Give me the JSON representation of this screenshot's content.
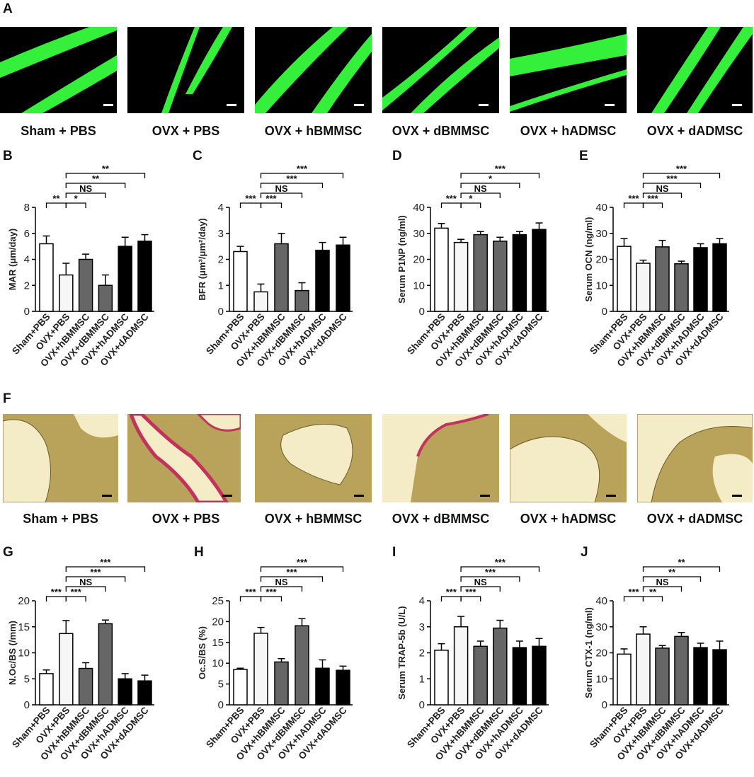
{
  "panel_letters": {
    "A": "A",
    "B": "B",
    "C": "C",
    "D": "D",
    "E": "E",
    "F": "F",
    "G": "G",
    "H": "H",
    "I": "I",
    "J": "J"
  },
  "group_captions": [
    "Sham + PBS",
    "OVX + PBS",
    "OVX + hBMMSC",
    "OVX + dBMMSC",
    "OVX + hADMSC",
    "OVX + dADMSC"
  ],
  "colors": {
    "fluorescent_green": "#35f03a",
    "stain_background": "#b9a35a",
    "stain_bone": "#f3ecc6",
    "stain_trap": "#c2325c",
    "bar_white": "#ffffff",
    "bar_light": "#f6f6f6",
    "bar_gray": "#666666",
    "bar_black": "#000000"
  },
  "chart_data": [
    {
      "type": "bar",
      "panel": "B",
      "categories": [
        "Sham+PBS",
        "OVX+PBS",
        "OVX+hBMMSC",
        "OVX+dBMMSC",
        "OVX+hADMSC",
        "OVX+dADMSC"
      ],
      "values": [
        5.2,
        2.8,
        4.0,
        2.0,
        5.0,
        5.4
      ],
      "errors": [
        0.6,
        0.9,
        0.4,
        0.8,
        0.7,
        0.5
      ],
      "ylabel": "MAR (μm/day)",
      "ylim": [
        0,
        8
      ],
      "yticks": [
        "0",
        "2",
        "4",
        "6",
        "8"
      ],
      "significance": [
        {
          "from": 0,
          "to": 1,
          "label": "**"
        },
        {
          "from": 1,
          "to": 2,
          "label": "*"
        },
        {
          "from": 1,
          "to": 3,
          "label": "NS"
        },
        {
          "from": 1,
          "to": 4,
          "label": "**"
        },
        {
          "from": 1,
          "to": 5,
          "label": "**"
        }
      ]
    },
    {
      "type": "bar",
      "panel": "C",
      "categories": [
        "Sham+PBS",
        "OVX+PBS",
        "OVX+hBMMSC",
        "OVX+dBMMSC",
        "OVX+hADMSC",
        "OVX+dADMSC"
      ],
      "values": [
        2.3,
        0.75,
        2.6,
        0.8,
        2.35,
        2.55
      ],
      "errors": [
        0.2,
        0.3,
        0.4,
        0.3,
        0.3,
        0.3
      ],
      "ylabel": "BFR (μm³/μm²/day)",
      "ylim": [
        0,
        4
      ],
      "yticks": [
        "0",
        "1",
        "2",
        "3",
        "4"
      ],
      "significance": [
        {
          "from": 0,
          "to": 1,
          "label": "***"
        },
        {
          "from": 1,
          "to": 2,
          "label": "***"
        },
        {
          "from": 1,
          "to": 3,
          "label": "NS"
        },
        {
          "from": 1,
          "to": 4,
          "label": "***"
        },
        {
          "from": 1,
          "to": 5,
          "label": "***"
        }
      ]
    },
    {
      "type": "bar",
      "panel": "D",
      "categories": [
        "Sham+PBS",
        "OVX+PBS",
        "OVX+hBMMSC",
        "OVX+dBMMSC",
        "OVX+hADMSC",
        "OVX+dADMSC"
      ],
      "values": [
        32,
        26.5,
        29.5,
        27,
        29.5,
        31.5
      ],
      "errors": [
        1.8,
        1.2,
        1.2,
        1.5,
        1.2,
        2.5
      ],
      "ylabel": "Serum P1NP (ng/ml)",
      "ylim": [
        0,
        40
      ],
      "yticks": [
        "0",
        "10",
        "20",
        "30",
        "40"
      ],
      "significance": [
        {
          "from": 0,
          "to": 1,
          "label": "***"
        },
        {
          "from": 1,
          "to": 2,
          "label": "*"
        },
        {
          "from": 1,
          "to": 3,
          "label": "NS"
        },
        {
          "from": 1,
          "to": 4,
          "label": "*"
        },
        {
          "from": 1,
          "to": 5,
          "label": "***"
        }
      ]
    },
    {
      "type": "bar",
      "panel": "E",
      "categories": [
        "Sham+PBS",
        "OVX+PBS",
        "OVX+hBMMSC",
        "OVX+dBMMSC",
        "OVX+hADMSC",
        "OVX+dADMSC"
      ],
      "values": [
        25,
        18.5,
        24.8,
        18.3,
        24.5,
        26
      ],
      "errors": [
        3.0,
        1.2,
        2.5,
        1.0,
        1.5,
        2.0
      ],
      "ylabel": "Serum OCN (ng/ml)",
      "ylim": [
        0,
        40
      ],
      "yticks": [
        "0",
        "10",
        "20",
        "30",
        "40"
      ],
      "significance": [
        {
          "from": 0,
          "to": 1,
          "label": "***"
        },
        {
          "from": 1,
          "to": 2,
          "label": "***"
        },
        {
          "from": 1,
          "to": 3,
          "label": "NS"
        },
        {
          "from": 1,
          "to": 4,
          "label": "***"
        },
        {
          "from": 1,
          "to": 5,
          "label": "***"
        }
      ]
    },
    {
      "type": "bar",
      "panel": "G",
      "categories": [
        "Sham+PBS",
        "OVX+PBS",
        "OVX+hBMMSC",
        "OVX+dBMMSC",
        "OVX+hADMSC",
        "OVX+dADMSC"
      ],
      "values": [
        6.0,
        13.7,
        7.0,
        15.6,
        5.0,
        4.6
      ],
      "errors": [
        0.7,
        2.5,
        1.1,
        0.7,
        1.0,
        1.1
      ],
      "ylabel": "N.Oc/BS (/mm)",
      "ylim": [
        0,
        20
      ],
      "yticks": [
        "0",
        "5",
        "10",
        "15",
        "20"
      ],
      "significance": [
        {
          "from": 0,
          "to": 1,
          "label": "***"
        },
        {
          "from": 1,
          "to": 2,
          "label": "***"
        },
        {
          "from": 1,
          "to": 3,
          "label": "NS"
        },
        {
          "from": 1,
          "to": 4,
          "label": "***"
        },
        {
          "from": 1,
          "to": 5,
          "label": "***"
        }
      ]
    },
    {
      "type": "bar",
      "panel": "H",
      "categories": [
        "Sham+PBS",
        "OVX+PBS",
        "OVX+hBMMSC",
        "OVX+dBMMSC",
        "OVX+hADMSC",
        "OVX+dADMSC"
      ],
      "values": [
        8.5,
        17.2,
        10.3,
        19.0,
        8.8,
        8.3
      ],
      "errors": [
        0.3,
        1.4,
        0.8,
        1.7,
        2.0,
        1.0
      ],
      "ylabel": "Oc.S/BS (%)",
      "ylim": [
        0,
        25
      ],
      "yticks": [
        "0",
        "5",
        "10",
        "15",
        "20",
        "25"
      ],
      "significance": [
        {
          "from": 0,
          "to": 1,
          "label": "***"
        },
        {
          "from": 1,
          "to": 2,
          "label": "***"
        },
        {
          "from": 1,
          "to": 3,
          "label": "NS"
        },
        {
          "from": 1,
          "to": 4,
          "label": "***"
        },
        {
          "from": 1,
          "to": 5,
          "label": "***"
        }
      ]
    },
    {
      "type": "bar",
      "panel": "I",
      "categories": [
        "Sham+PBS",
        "OVX+PBS",
        "OVX+hBMMSC",
        "OVX+dBMMSC",
        "OVX+hADMSC",
        "OVX+dADMSC"
      ],
      "values": [
        2.1,
        3.0,
        2.25,
        2.95,
        2.2,
        2.25
      ],
      "errors": [
        0.25,
        0.4,
        0.2,
        0.3,
        0.25,
        0.3
      ],
      "ylabel": "Serum TRAP-5b (U/L)",
      "ylim": [
        0,
        4
      ],
      "yticks": [
        "0",
        "1",
        "2",
        "3",
        "4"
      ],
      "significance": [
        {
          "from": 0,
          "to": 1,
          "label": "***"
        },
        {
          "from": 1,
          "to": 2,
          "label": "***"
        },
        {
          "from": 1,
          "to": 3,
          "label": "NS"
        },
        {
          "from": 1,
          "to": 4,
          "label": "***"
        },
        {
          "from": 1,
          "to": 5,
          "label": "***"
        }
      ]
    },
    {
      "type": "bar",
      "panel": "J",
      "categories": [
        "Sham+PBS",
        "OVX+PBS",
        "OVX+hBMMSC",
        "OVX+dBMMSC",
        "OVX+hADMSC",
        "OVX+dADMSC"
      ],
      "values": [
        19.5,
        27.2,
        21.8,
        26.3,
        22.0,
        21.2
      ],
      "errors": [
        2.0,
        2.8,
        1.0,
        1.5,
        1.7,
        3.3
      ],
      "ylabel": "Serum CTX-1 (ng/ml)",
      "ylim": [
        0,
        40
      ],
      "yticks": [
        "0",
        "10",
        "20",
        "30",
        "40"
      ],
      "significance": [
        {
          "from": 0,
          "to": 1,
          "label": "***"
        },
        {
          "from": 1,
          "to": 2,
          "label": "**"
        },
        {
          "from": 1,
          "to": 3,
          "label": "NS"
        },
        {
          "from": 1,
          "to": 4,
          "label": "**"
        },
        {
          "from": 1,
          "to": 5,
          "label": "**"
        }
      ]
    }
  ]
}
